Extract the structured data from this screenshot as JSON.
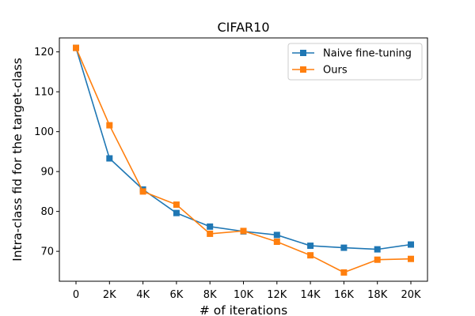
{
  "chart_data": {
    "type": "line",
    "title": "CIFAR10",
    "xlabel": "# of iterations",
    "ylabel": "Intra-class fid for the target-class",
    "categories": [
      "0",
      "2K",
      "4K",
      "6K",
      "8K",
      "10K",
      "12K",
      "14K",
      "16K",
      "18K",
      "20K"
    ],
    "ylim": [
      62.5,
      123.5
    ],
    "yticks": [
      70,
      80,
      90,
      100,
      110,
      120
    ],
    "grid": false,
    "legend_position": "top-right",
    "series": [
      {
        "name": "Naive fine-tuning",
        "color": "#1f77b4",
        "marker": "square",
        "values": [
          121.0,
          93.3,
          85.5,
          79.6,
          76.2,
          75.0,
          74.1,
          71.4,
          70.9,
          70.5,
          71.7
        ]
      },
      {
        "name": "Ours",
        "color": "#ff7f0e",
        "marker": "square",
        "values": [
          121.0,
          101.6,
          85.0,
          81.7,
          74.4,
          75.1,
          72.4,
          69.0,
          64.7,
          67.9,
          68.1
        ]
      }
    ]
  }
}
